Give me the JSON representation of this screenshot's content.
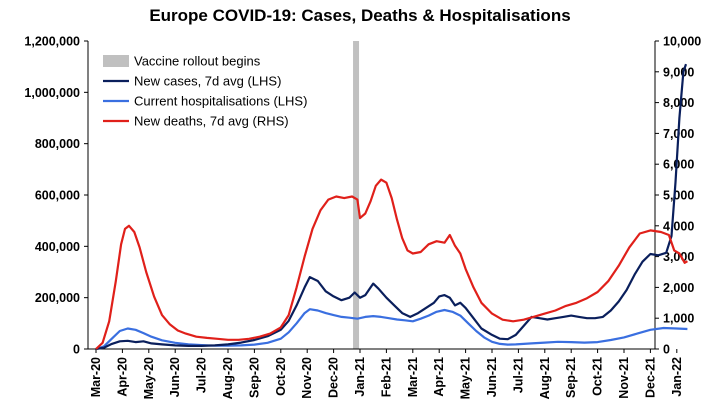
{
  "chart_data": {
    "type": "line",
    "title": "Europe COVID-19: Cases, Deaths & Hospitalisations",
    "y_left": {
      "min": 0,
      "max": 1200000,
      "ticks": [
        "0",
        "200,000",
        "400,000",
        "600,000",
        "800,000",
        "1,000,000",
        "1,200,000"
      ]
    },
    "y_right": {
      "min": 0,
      "max": 10000,
      "ticks": [
        "0",
        "1,000",
        "2,000",
        "3,000",
        "4,000",
        "5,000",
        "6,000",
        "7,000",
        "8,000",
        "9,000",
        "10,000"
      ]
    },
    "x_ticks": [
      "Mar-20",
      "Apr-20",
      "May-20",
      "Jun-20",
      "Jul-20",
      "Aug-20",
      "Sep-20",
      "Oct-20",
      "Nov-20",
      "Dec-20",
      "Jan-21",
      "Feb-21",
      "Mar-21",
      "Apr-21",
      "May-21",
      "Jun-21",
      "Jul-21",
      "Aug-21",
      "Sep-21",
      "Oct-21",
      "Nov-21",
      "Dec-21",
      "Jan-22"
    ],
    "vaccine_rollout": {
      "label": "Vaccine rollout begins",
      "x": "Dec-20 (late)",
      "color": "#c0c0c0"
    },
    "series": [
      {
        "name": "New cases, 7d avg (LHS)",
        "axis": "left",
        "color": "#0a1f5c",
        "points": [
          [
            0,
            0
          ],
          [
            0.3,
            5000
          ],
          [
            0.6,
            20000
          ],
          [
            0.9,
            30000
          ],
          [
            1.2,
            32000
          ],
          [
            1.5,
            27000
          ],
          [
            1.8,
            30000
          ],
          [
            2.1,
            22000
          ],
          [
            2.5,
            18000
          ],
          [
            3.0,
            14000
          ],
          [
            3.5,
            12000
          ],
          [
            4.0,
            12000
          ],
          [
            4.5,
            14000
          ],
          [
            5.0,
            18000
          ],
          [
            5.5,
            25000
          ],
          [
            6.0,
            35000
          ],
          [
            6.5,
            50000
          ],
          [
            7.0,
            75000
          ],
          [
            7.3,
            110000
          ],
          [
            7.6,
            170000
          ],
          [
            7.9,
            240000
          ],
          [
            8.1,
            280000
          ],
          [
            8.4,
            265000
          ],
          [
            8.7,
            225000
          ],
          [
            9.0,
            205000
          ],
          [
            9.3,
            190000
          ],
          [
            9.6,
            200000
          ],
          [
            9.8,
            220000
          ],
          [
            10.0,
            200000
          ],
          [
            10.2,
            210000
          ],
          [
            10.4,
            240000
          ],
          [
            10.5,
            255000
          ],
          [
            10.7,
            235000
          ],
          [
            11.0,
            200000
          ],
          [
            11.3,
            170000
          ],
          [
            11.6,
            140000
          ],
          [
            11.9,
            125000
          ],
          [
            12.2,
            140000
          ],
          [
            12.5,
            160000
          ],
          [
            12.8,
            180000
          ],
          [
            13.0,
            205000
          ],
          [
            13.2,
            210000
          ],
          [
            13.4,
            200000
          ],
          [
            13.6,
            170000
          ],
          [
            13.8,
            180000
          ],
          [
            14.0,
            160000
          ],
          [
            14.3,
            120000
          ],
          [
            14.6,
            80000
          ],
          [
            15.0,
            55000
          ],
          [
            15.3,
            40000
          ],
          [
            15.6,
            38000
          ],
          [
            15.9,
            55000
          ],
          [
            16.2,
            90000
          ],
          [
            16.5,
            125000
          ],
          [
            16.8,
            120000
          ],
          [
            17.1,
            115000
          ],
          [
            17.4,
            120000
          ],
          [
            17.7,
            125000
          ],
          [
            18.0,
            130000
          ],
          [
            18.3,
            125000
          ],
          [
            18.6,
            120000
          ],
          [
            18.9,
            120000
          ],
          [
            19.2,
            125000
          ],
          [
            19.5,
            150000
          ],
          [
            19.8,
            185000
          ],
          [
            20.1,
            230000
          ],
          [
            20.4,
            290000
          ],
          [
            20.7,
            340000
          ],
          [
            21.0,
            370000
          ],
          [
            21.3,
            365000
          ],
          [
            21.6,
            375000
          ],
          [
            21.8,
            440000
          ],
          [
            21.95,
            650000
          ],
          [
            22.1,
            900000
          ],
          [
            22.25,
            1080000
          ],
          [
            22.35,
            1110000
          ]
        ]
      },
      {
        "name": "Current hospitalisations (LHS)",
        "axis": "left",
        "color": "#3a6fe0",
        "points": [
          [
            0,
            0
          ],
          [
            0.3,
            10000
          ],
          [
            0.6,
            40000
          ],
          [
            0.9,
            70000
          ],
          [
            1.2,
            80000
          ],
          [
            1.5,
            75000
          ],
          [
            1.8,
            62000
          ],
          [
            2.1,
            48000
          ],
          [
            2.5,
            34000
          ],
          [
            3.0,
            24000
          ],
          [
            3.5,
            18000
          ],
          [
            4.0,
            15000
          ],
          [
            4.5,
            13000
          ],
          [
            5.0,
            13000
          ],
          [
            5.5,
            14000
          ],
          [
            6.0,
            17000
          ],
          [
            6.5,
            24000
          ],
          [
            7.0,
            40000
          ],
          [
            7.3,
            65000
          ],
          [
            7.6,
            100000
          ],
          [
            7.9,
            140000
          ],
          [
            8.1,
            155000
          ],
          [
            8.4,
            150000
          ],
          [
            8.7,
            140000
          ],
          [
            9.0,
            132000
          ],
          [
            9.3,
            125000
          ],
          [
            9.6,
            122000
          ],
          [
            9.9,
            118000
          ],
          [
            10.2,
            125000
          ],
          [
            10.5,
            128000
          ],
          [
            10.8,
            125000
          ],
          [
            11.1,
            120000
          ],
          [
            11.4,
            115000
          ],
          [
            11.7,
            112000
          ],
          [
            12.0,
            108000
          ],
          [
            12.3,
            118000
          ],
          [
            12.6,
            130000
          ],
          [
            12.9,
            145000
          ],
          [
            13.2,
            152000
          ],
          [
            13.5,
            145000
          ],
          [
            13.8,
            130000
          ],
          [
            14.1,
            100000
          ],
          [
            14.4,
            70000
          ],
          [
            14.7,
            45000
          ],
          [
            15.0,
            28000
          ],
          [
            15.3,
            20000
          ],
          [
            15.6,
            17000
          ],
          [
            15.9,
            18000
          ],
          [
            16.2,
            20000
          ],
          [
            16.5,
            22000
          ],
          [
            17.0,
            25000
          ],
          [
            17.5,
            28000
          ],
          [
            18.0,
            27000
          ],
          [
            18.5,
            25000
          ],
          [
            19.0,
            27000
          ],
          [
            19.5,
            35000
          ],
          [
            20.0,
            45000
          ],
          [
            20.5,
            60000
          ],
          [
            21.0,
            75000
          ],
          [
            21.5,
            82000
          ],
          [
            22.0,
            80000
          ],
          [
            22.4,
            78000
          ]
        ]
      },
      {
        "name": "New deaths, 7d avg (RHS)",
        "axis": "right",
        "color": "#e0201a",
        "points": [
          [
            0,
            0
          ],
          [
            0.25,
            200
          ],
          [
            0.5,
            900
          ],
          [
            0.75,
            2200
          ],
          [
            0.95,
            3400
          ],
          [
            1.1,
            3900
          ],
          [
            1.25,
            4000
          ],
          [
            1.45,
            3800
          ],
          [
            1.65,
            3300
          ],
          [
            1.9,
            2500
          ],
          [
            2.2,
            1700
          ],
          [
            2.5,
            1100
          ],
          [
            2.8,
            800
          ],
          [
            3.1,
            600
          ],
          [
            3.4,
            500
          ],
          [
            3.8,
            400
          ],
          [
            4.2,
            360
          ],
          [
            4.6,
            330
          ],
          [
            5.0,
            300
          ],
          [
            5.4,
            300
          ],
          [
            5.8,
            330
          ],
          [
            6.2,
            400
          ],
          [
            6.6,
            500
          ],
          [
            7.0,
            700
          ],
          [
            7.3,
            1100
          ],
          [
            7.6,
            2000
          ],
          [
            7.9,
            3000
          ],
          [
            8.2,
            3900
          ],
          [
            8.5,
            4500
          ],
          [
            8.8,
            4850
          ],
          [
            9.1,
            4950
          ],
          [
            9.4,
            4900
          ],
          [
            9.7,
            4950
          ],
          [
            9.9,
            4850
          ],
          [
            10.0,
            4250
          ],
          [
            10.2,
            4400
          ],
          [
            10.4,
            4800
          ],
          [
            10.6,
            5300
          ],
          [
            10.8,
            5500
          ],
          [
            11.0,
            5400
          ],
          [
            11.2,
            4900
          ],
          [
            11.4,
            4200
          ],
          [
            11.6,
            3600
          ],
          [
            11.8,
            3200
          ],
          [
            12.0,
            3100
          ],
          [
            12.3,
            3150
          ],
          [
            12.6,
            3400
          ],
          [
            12.9,
            3500
          ],
          [
            13.2,
            3450
          ],
          [
            13.4,
            3700
          ],
          [
            13.6,
            3350
          ],
          [
            13.8,
            3100
          ],
          [
            14.0,
            2600
          ],
          [
            14.3,
            2000
          ],
          [
            14.6,
            1500
          ],
          [
            15.0,
            1150
          ],
          [
            15.4,
            950
          ],
          [
            15.8,
            900
          ],
          [
            16.2,
            950
          ],
          [
            16.6,
            1050
          ],
          [
            17.0,
            1150
          ],
          [
            17.4,
            1250
          ],
          [
            17.8,
            1400
          ],
          [
            18.2,
            1500
          ],
          [
            18.6,
            1650
          ],
          [
            19.0,
            1850
          ],
          [
            19.4,
            2200
          ],
          [
            19.8,
            2700
          ],
          [
            20.2,
            3300
          ],
          [
            20.6,
            3750
          ],
          [
            21.0,
            3850
          ],
          [
            21.4,
            3800
          ],
          [
            21.7,
            3700
          ],
          [
            21.9,
            3200
          ],
          [
            22.1,
            3100
          ],
          [
            22.3,
            2800
          ],
          [
            22.4,
            2850
          ]
        ]
      }
    ],
    "legend": {
      "placement": "top-left"
    },
    "grid": false
  }
}
